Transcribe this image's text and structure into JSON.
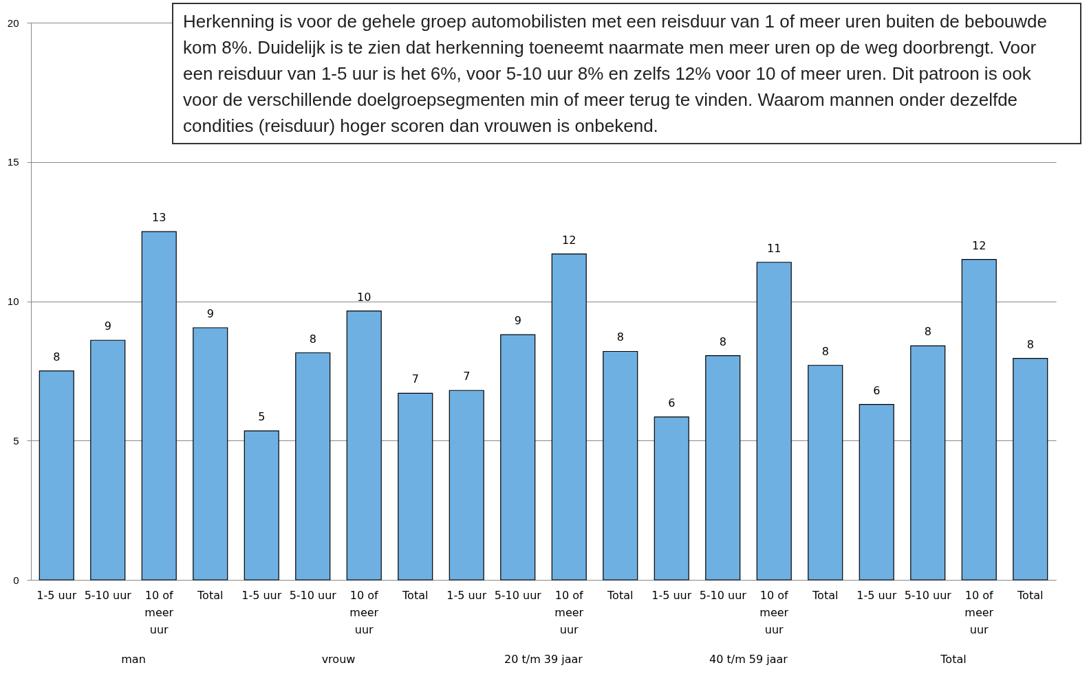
{
  "chart_data": {
    "type": "bar",
    "categories": [
      "1-5 uur",
      "5-10 uur",
      "10 of meer uur",
      "Total",
      "1-5 uur",
      "5-10 uur",
      "10 of meer uur",
      "Total",
      "1-5 uur",
      "5-10 uur",
      "10 of meer uur",
      "Total",
      "1-5 uur",
      "5-10 uur",
      "10 of meer uur",
      "Total",
      "1-5 uur",
      "5-10 uur",
      "10 of meer uur",
      "Total"
    ],
    "values": [
      7.5,
      8.6,
      12.5,
      9.05,
      5.35,
      8.15,
      9.65,
      6.7,
      6.8,
      8.8,
      11.7,
      8.2,
      5.85,
      8.05,
      11.4,
      7.7,
      6.3,
      8.4,
      11.5,
      7.95
    ],
    "value_labels": [
      "8",
      "9",
      "13",
      "9",
      "5",
      "8",
      "10",
      "7",
      "7",
      "9",
      "12",
      "8",
      "6",
      "8",
      "11",
      "8",
      "6",
      "8",
      "12",
      "8"
    ],
    "color": "#6fb0e3",
    "ylim": [
      0,
      20
    ],
    "yticks": [
      0,
      5,
      10,
      15,
      20
    ],
    "grid": "y",
    "annotations": [
      "Herkenning is voor de gehele groep automobilisten met een reisduur van 1 of meer uren buiten de bebouwde kom 8%. Duidelijk is te zien dat herkenning toeneemt naarmate men meer uren op de weg doorbrengt.  Voor  een reisduur van 1-5 uur is het 6%, voor 5-10 uur 8% en zelfs 12% voor 10 of meer uren. Dit patroon is ook voor de verschillende doelgroepsegmenten min of meer terug te vinden. Waarom mannen onder dezelfde condities (reisduur) hoger scoren dan vrouwen is onbekend.",
      "man",
      "vrouw",
      "20 t/m 39 jaar",
      "40 t/m 59 jaar",
      "Total"
    ]
  }
}
